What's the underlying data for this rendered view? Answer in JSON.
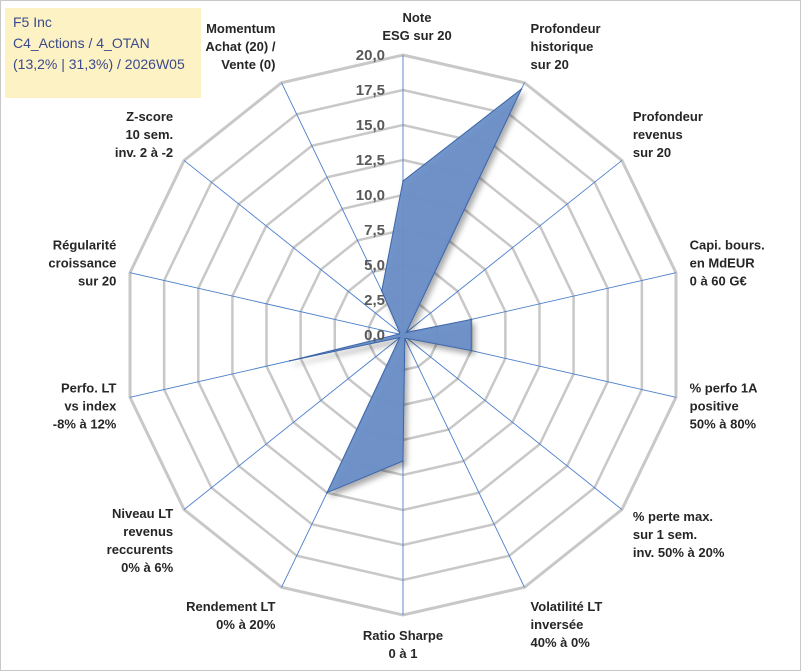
{
  "info_box": {
    "line1": "F5 Inc",
    "line2": "C4_Actions / 4_OTAN",
    "line3": "(13,2% | 31,3%) / 2026W05"
  },
  "chart_data": {
    "type": "radar",
    "title": "",
    "rmin": 0,
    "rmax": 20,
    "tick_step": 2.5,
    "tick_labels": [
      "0,0",
      "2,5",
      "5,0",
      "7,5",
      "10,0",
      "12,5",
      "15,0",
      "17,5",
      "20,0"
    ],
    "axes": [
      [
        "Note",
        "ESG sur 20"
      ],
      [
        "Profondeur",
        "historique",
        "sur 20"
      ],
      [
        "Profondeur",
        "revenus",
        "sur 20"
      ],
      [
        "Capi. bours.",
        "en MdEUR",
        "0 à 60 G€"
      ],
      [
        "% perfo 1A",
        "positive",
        "50% à 80%"
      ],
      [
        "% perte max.",
        "sur 1 sem.",
        "inv. 50% à 20%"
      ],
      [
        "Volatilité LT",
        "inversée",
        "40% à 0%"
      ],
      [
        "Ratio Sharpe",
        "0 à 1"
      ],
      [
        "Rendement LT",
        "0% à 20%"
      ],
      [
        "Niveau LT",
        "revenus",
        "reccurents",
        "0% à 6%"
      ],
      [
        "Perfo. LT",
        "vs index",
        "-8% à 12%"
      ],
      [
        "Régularité",
        "croissance",
        "sur 20"
      ],
      [
        "Z-score",
        "10 sem.",
        "inv. 2 à -2"
      ],
      [
        "Momentum",
        "Achat (20) /",
        "Vente (0)"
      ]
    ],
    "series": [
      {
        "name": "F5 Inc",
        "values": [
          11.0,
          19.5,
          0.3,
          5.0,
          5.0,
          0.4,
          0.3,
          9.0,
          12.5,
          0.3,
          8.3,
          0.3,
          0.3,
          3.5
        ]
      }
    ],
    "colors": {
      "fill": "#6a8ec7",
      "stroke": "#3c65a8",
      "grid": "#c8c8c8",
      "spoke": "#4a7fc9"
    }
  }
}
